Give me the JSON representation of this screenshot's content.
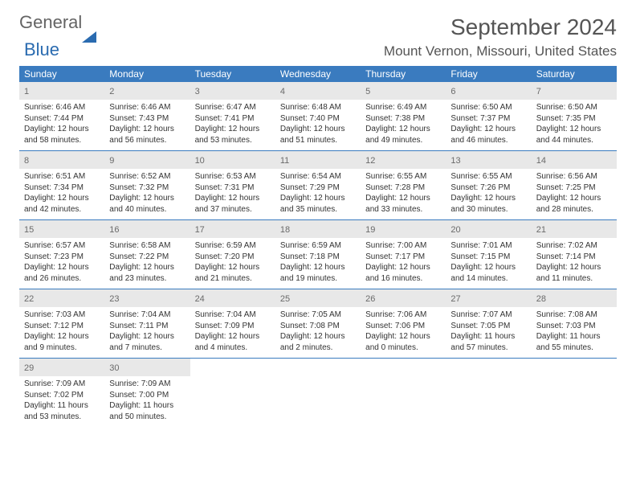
{
  "brand": {
    "word1": "General",
    "word2": "Blue"
  },
  "title": "September 2024",
  "location": "Mount Vernon, Missouri, United States",
  "colors": {
    "header_bg": "#3a7bbf",
    "daynum_bg": "#e8e8e8",
    "text": "#333333",
    "muted": "#646464",
    "brand_blue": "#2a6bb0"
  },
  "day_names": [
    "Sunday",
    "Monday",
    "Tuesday",
    "Wednesday",
    "Thursday",
    "Friday",
    "Saturday"
  ],
  "weeks": [
    [
      {
        "n": "1",
        "sr": "Sunrise: 6:46 AM",
        "ss": "Sunset: 7:44 PM",
        "d1": "Daylight: 12 hours",
        "d2": "and 58 minutes."
      },
      {
        "n": "2",
        "sr": "Sunrise: 6:46 AM",
        "ss": "Sunset: 7:43 PM",
        "d1": "Daylight: 12 hours",
        "d2": "and 56 minutes."
      },
      {
        "n": "3",
        "sr": "Sunrise: 6:47 AM",
        "ss": "Sunset: 7:41 PM",
        "d1": "Daylight: 12 hours",
        "d2": "and 53 minutes."
      },
      {
        "n": "4",
        "sr": "Sunrise: 6:48 AM",
        "ss": "Sunset: 7:40 PM",
        "d1": "Daylight: 12 hours",
        "d2": "and 51 minutes."
      },
      {
        "n": "5",
        "sr": "Sunrise: 6:49 AM",
        "ss": "Sunset: 7:38 PM",
        "d1": "Daylight: 12 hours",
        "d2": "and 49 minutes."
      },
      {
        "n": "6",
        "sr": "Sunrise: 6:50 AM",
        "ss": "Sunset: 7:37 PM",
        "d1": "Daylight: 12 hours",
        "d2": "and 46 minutes."
      },
      {
        "n": "7",
        "sr": "Sunrise: 6:50 AM",
        "ss": "Sunset: 7:35 PM",
        "d1": "Daylight: 12 hours",
        "d2": "and 44 minutes."
      }
    ],
    [
      {
        "n": "8",
        "sr": "Sunrise: 6:51 AM",
        "ss": "Sunset: 7:34 PM",
        "d1": "Daylight: 12 hours",
        "d2": "and 42 minutes."
      },
      {
        "n": "9",
        "sr": "Sunrise: 6:52 AM",
        "ss": "Sunset: 7:32 PM",
        "d1": "Daylight: 12 hours",
        "d2": "and 40 minutes."
      },
      {
        "n": "10",
        "sr": "Sunrise: 6:53 AM",
        "ss": "Sunset: 7:31 PM",
        "d1": "Daylight: 12 hours",
        "d2": "and 37 minutes."
      },
      {
        "n": "11",
        "sr": "Sunrise: 6:54 AM",
        "ss": "Sunset: 7:29 PM",
        "d1": "Daylight: 12 hours",
        "d2": "and 35 minutes."
      },
      {
        "n": "12",
        "sr": "Sunrise: 6:55 AM",
        "ss": "Sunset: 7:28 PM",
        "d1": "Daylight: 12 hours",
        "d2": "and 33 minutes."
      },
      {
        "n": "13",
        "sr": "Sunrise: 6:55 AM",
        "ss": "Sunset: 7:26 PM",
        "d1": "Daylight: 12 hours",
        "d2": "and 30 minutes."
      },
      {
        "n": "14",
        "sr": "Sunrise: 6:56 AM",
        "ss": "Sunset: 7:25 PM",
        "d1": "Daylight: 12 hours",
        "d2": "and 28 minutes."
      }
    ],
    [
      {
        "n": "15",
        "sr": "Sunrise: 6:57 AM",
        "ss": "Sunset: 7:23 PM",
        "d1": "Daylight: 12 hours",
        "d2": "and 26 minutes."
      },
      {
        "n": "16",
        "sr": "Sunrise: 6:58 AM",
        "ss": "Sunset: 7:22 PM",
        "d1": "Daylight: 12 hours",
        "d2": "and 23 minutes."
      },
      {
        "n": "17",
        "sr": "Sunrise: 6:59 AM",
        "ss": "Sunset: 7:20 PM",
        "d1": "Daylight: 12 hours",
        "d2": "and 21 minutes."
      },
      {
        "n": "18",
        "sr": "Sunrise: 6:59 AM",
        "ss": "Sunset: 7:18 PM",
        "d1": "Daylight: 12 hours",
        "d2": "and 19 minutes."
      },
      {
        "n": "19",
        "sr": "Sunrise: 7:00 AM",
        "ss": "Sunset: 7:17 PM",
        "d1": "Daylight: 12 hours",
        "d2": "and 16 minutes."
      },
      {
        "n": "20",
        "sr": "Sunrise: 7:01 AM",
        "ss": "Sunset: 7:15 PM",
        "d1": "Daylight: 12 hours",
        "d2": "and 14 minutes."
      },
      {
        "n": "21",
        "sr": "Sunrise: 7:02 AM",
        "ss": "Sunset: 7:14 PM",
        "d1": "Daylight: 12 hours",
        "d2": "and 11 minutes."
      }
    ],
    [
      {
        "n": "22",
        "sr": "Sunrise: 7:03 AM",
        "ss": "Sunset: 7:12 PM",
        "d1": "Daylight: 12 hours",
        "d2": "and 9 minutes."
      },
      {
        "n": "23",
        "sr": "Sunrise: 7:04 AM",
        "ss": "Sunset: 7:11 PM",
        "d1": "Daylight: 12 hours",
        "d2": "and 7 minutes."
      },
      {
        "n": "24",
        "sr": "Sunrise: 7:04 AM",
        "ss": "Sunset: 7:09 PM",
        "d1": "Daylight: 12 hours",
        "d2": "and 4 minutes."
      },
      {
        "n": "25",
        "sr": "Sunrise: 7:05 AM",
        "ss": "Sunset: 7:08 PM",
        "d1": "Daylight: 12 hours",
        "d2": "and 2 minutes."
      },
      {
        "n": "26",
        "sr": "Sunrise: 7:06 AM",
        "ss": "Sunset: 7:06 PM",
        "d1": "Daylight: 12 hours",
        "d2": "and 0 minutes."
      },
      {
        "n": "27",
        "sr": "Sunrise: 7:07 AM",
        "ss": "Sunset: 7:05 PM",
        "d1": "Daylight: 11 hours",
        "d2": "and 57 minutes."
      },
      {
        "n": "28",
        "sr": "Sunrise: 7:08 AM",
        "ss": "Sunset: 7:03 PM",
        "d1": "Daylight: 11 hours",
        "d2": "and 55 minutes."
      }
    ],
    [
      {
        "n": "29",
        "sr": "Sunrise: 7:09 AM",
        "ss": "Sunset: 7:02 PM",
        "d1": "Daylight: 11 hours",
        "d2": "and 53 minutes."
      },
      {
        "n": "30",
        "sr": "Sunrise: 7:09 AM",
        "ss": "Sunset: 7:00 PM",
        "d1": "Daylight: 11 hours",
        "d2": "and 50 minutes."
      },
      null,
      null,
      null,
      null,
      null
    ]
  ]
}
